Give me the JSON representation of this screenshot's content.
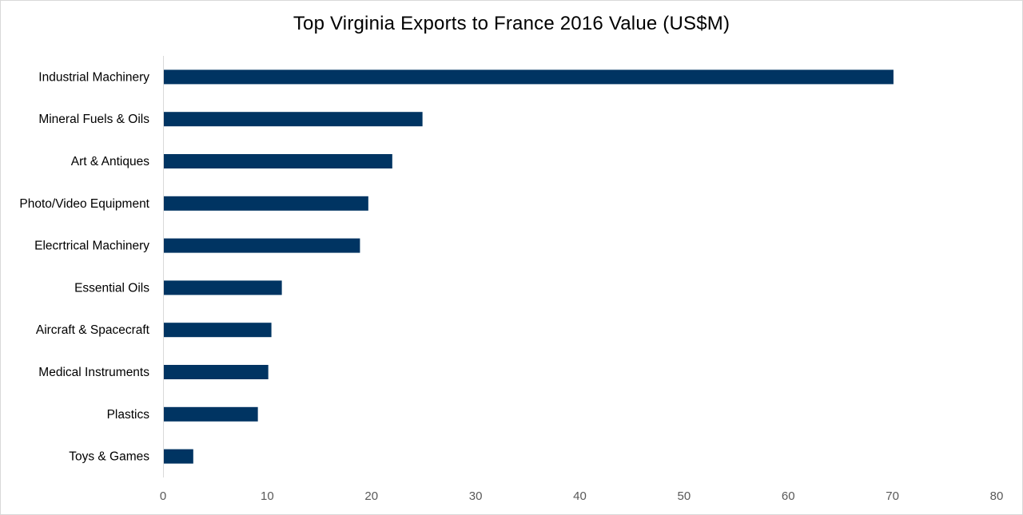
{
  "chart_data": {
    "type": "bar",
    "orientation": "horizontal",
    "title": "Top Virginia Exports to France 2016 Value (US$M)",
    "xlabel": "",
    "ylabel": "",
    "categories": [
      "Industrial Machinery",
      "Mineral Fuels & Oils",
      "Art & Antiques",
      "Photo/Video Equipment",
      "Elecrtrical Machinery",
      "Essential Oils",
      "Aircraft & Spacecraft",
      "Medical Instruments",
      "Plastics",
      "Toys & Games"
    ],
    "values": [
      70.1,
      24.9,
      22.0,
      19.7,
      18.9,
      11.4,
      10.4,
      10.1,
      9.1,
      2.9
    ],
    "xlim": [
      0,
      80
    ],
    "xticks": [
      "0",
      "10",
      "20",
      "30",
      "40",
      "50",
      "60",
      "70",
      "80"
    ],
    "grid": false,
    "legend": "none",
    "bar_color": "#003462",
    "axis_color": "#d9d9d9"
  }
}
